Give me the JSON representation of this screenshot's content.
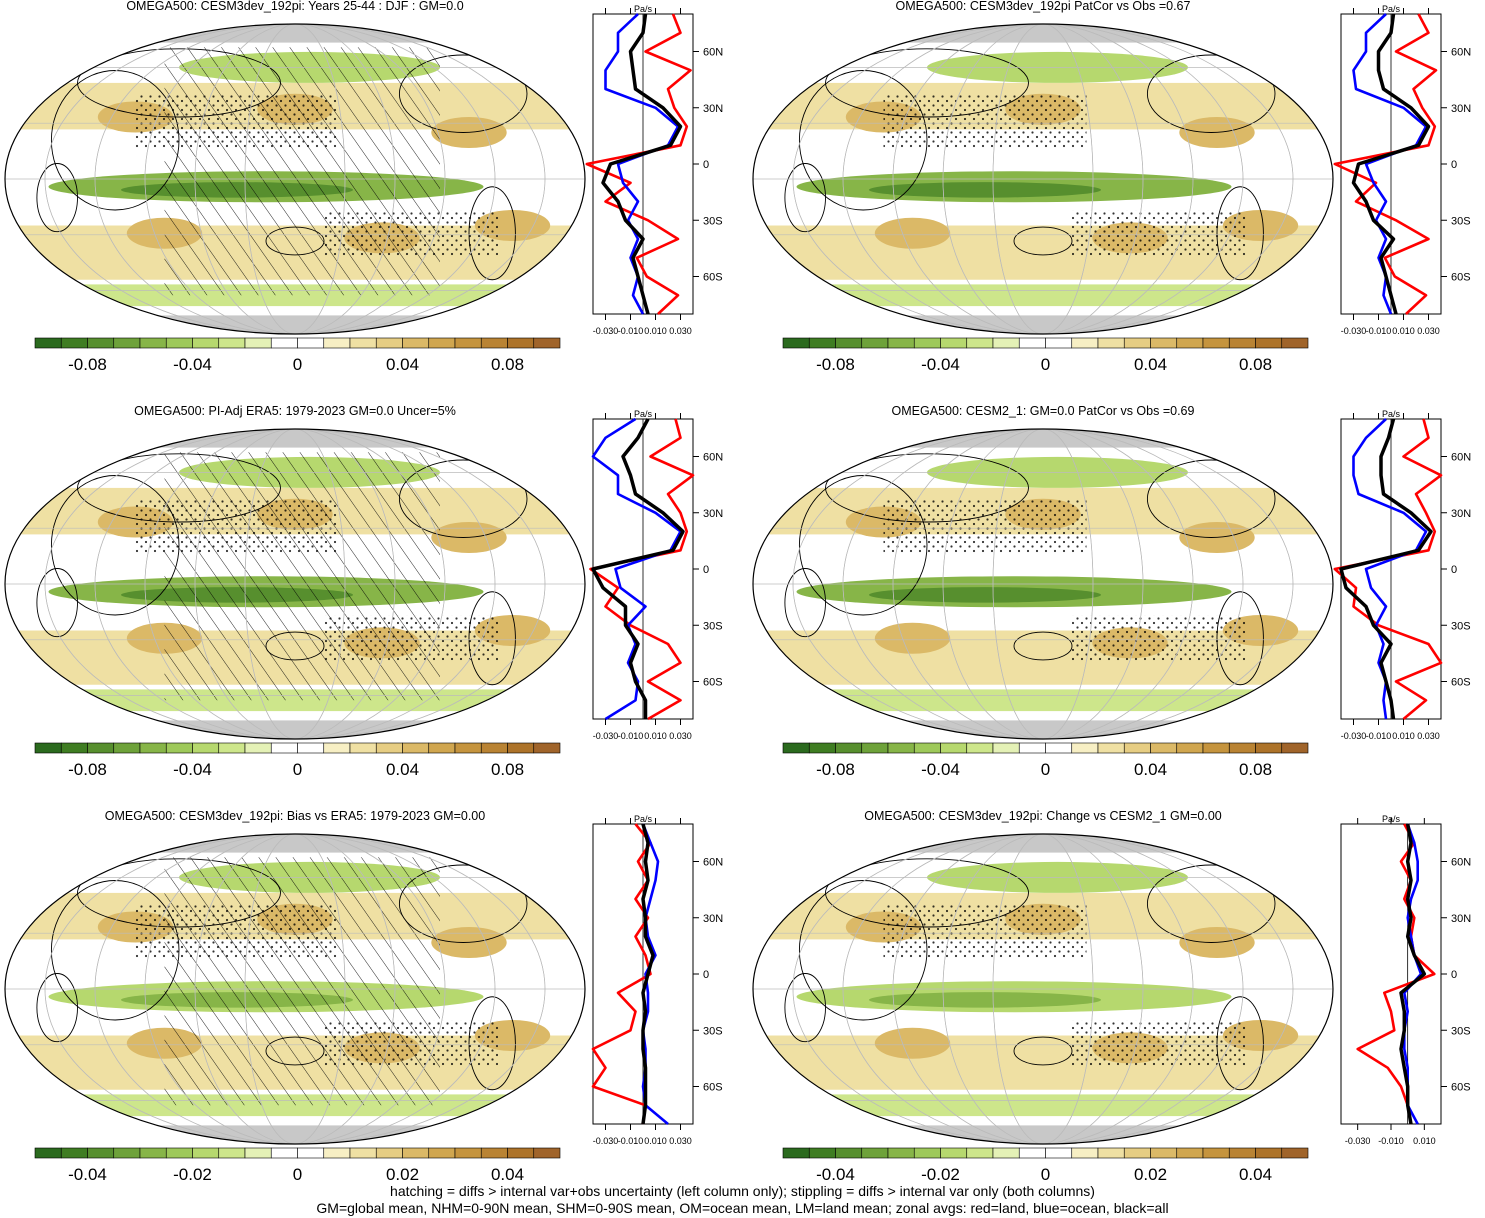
{
  "panels": [
    {
      "title": "OMEGA500: CESM3dev_192pi: Years 25-44 : DJF : GM=0.0",
      "hatching": true,
      "colorbar": {
        "labels": [
          "-0.08",
          "-0.04",
          "0",
          "0.04",
          "0.08"
        ]
      },
      "profile": {
        "unit": "Pa/s",
        "xticks": [
          "-0.030",
          "-0.010",
          "0.010",
          "0.030"
        ],
        "yticks": [
          "60N",
          "30N",
          "0",
          "30S",
          "60S"
        ]
      }
    },
    {
      "title": "OMEGA500: CESM3dev_192pi PatCor vs Obs =0.67",
      "hatching": false,
      "colorbar": {
        "labels": [
          "-0.08",
          "-0.04",
          "0",
          "0.04",
          "0.08"
        ]
      },
      "profile": {
        "unit": "Pa/s",
        "xticks": [
          "-0.030",
          "-0.010",
          "0.010",
          "0.030"
        ],
        "yticks": [
          "60N",
          "30N",
          "0",
          "30S",
          "60S"
        ]
      }
    },
    {
      "title": "OMEGA500: PI-Adj ERA5: 1979-2023 GM=0.0 Uncer=5%",
      "hatching": true,
      "colorbar": {
        "labels": [
          "-0.08",
          "-0.04",
          "0",
          "0.04",
          "0.08"
        ]
      },
      "profile": {
        "unit": "Pa/s",
        "xticks": [
          "-0.030",
          "-0.010",
          "0.010",
          "0.030"
        ],
        "yticks": [
          "60N",
          "30N",
          "0",
          "30S",
          "60S"
        ]
      }
    },
    {
      "title": "OMEGA500: CESM2_1: GM=0.0 PatCor vs Obs =0.69",
      "hatching": false,
      "colorbar": {
        "labels": [
          "-0.08",
          "-0.04",
          "0",
          "0.04",
          "0.08"
        ]
      },
      "profile": {
        "unit": "Pa/s",
        "xticks": [
          "-0.030",
          "-0.010",
          "0.010",
          "0.030"
        ],
        "yticks": [
          "60N",
          "30N",
          "0",
          "30S",
          "60S"
        ]
      }
    },
    {
      "title": "OMEGA500: CESM3dev_192pi: Bias vs ERA5: 1979-2023 GM=0.00",
      "hatching": true,
      "colorbar": {
        "labels": [
          "-0.04",
          "-0.02",
          "0",
          "0.02",
          "0.04"
        ]
      },
      "profile": {
        "unit": "Pa/s",
        "xticks": [
          "-0.030",
          "-0.010",
          "0.010",
          "0.030"
        ],
        "yticks": [
          "60N",
          "30N",
          "0",
          "30S",
          "60S"
        ]
      }
    },
    {
      "title": "OMEGA500: CESM3dev_192pi: Change vs CESM2_1 GM=0.00",
      "hatching": false,
      "colorbar": {
        "labels": [
          "-0.04",
          "-0.02",
          "0",
          "0.02",
          "0.04"
        ]
      },
      "profile": {
        "unit": "Pa/s",
        "xticks": [
          "-0.030",
          "-0.010",
          "0.010"
        ],
        "yticks": [
          "60N",
          "30N",
          "0",
          "30S",
          "60S"
        ]
      }
    }
  ],
  "footer": {
    "line1": "hatching = diffs > internal var+obs uncertainty (left column only); stippling = diffs > internal var only (both columns)",
    "line2": "GM=global mean, NHM=0-90N mean, SHM=0-90S mean, OM=ocean mean, LM=land mean; zonal avgs: red=land, blue=ocean, black=all"
  },
  "colors": {
    "colorbar": [
      "#2b6a1e",
      "#3f7d22",
      "#578f2e",
      "#6ea23a",
      "#87b548",
      "#9ec95a",
      "#b6d86e",
      "#cde68b",
      "#e4f1b6",
      "#ffffff",
      "#ffffff",
      "#f7efc4",
      "#efe0a3",
      "#e6cd83",
      "#dbb967",
      "#d0a64f",
      "#c5943e",
      "#b98333",
      "#ad7329",
      "#a0642a"
    ],
    "land_curve": "#ff0000",
    "ocean_curve": "#0000ff",
    "all_curve": "#000000",
    "land_mask": "#c8c8c8"
  },
  "chart_data": [
    {
      "type": "line",
      "xlim": [
        -0.04,
        0.04
      ],
      "ylim": [
        -80,
        80
      ],
      "xlabel": "Pa/s",
      "series": [
        {
          "color": "red",
          "x": [
            -80,
            -70,
            -60,
            -50,
            -40,
            -30,
            -20,
            -10,
            0,
            10,
            20,
            30,
            40,
            50,
            60,
            70,
            80
          ],
          "y": [
            0.012,
            0.028,
            0.003,
            -0.005,
            0.028,
            0.004,
            -0.03,
            -0.01,
            -0.045,
            0.03,
            0.035,
            0.025,
            0.02,
            0.038,
            0.002,
            0.03,
            0.024
          ]
        },
        {
          "color": "blue",
          "x": [
            -80,
            -70,
            -60,
            -50,
            -40,
            -30,
            -20,
            -10,
            0,
            10,
            20,
            30,
            40,
            50,
            60,
            70,
            80
          ],
          "y": [
            0.0,
            -0.008,
            -0.004,
            -0.01,
            -0.004,
            -0.012,
            -0.004,
            -0.016,
            -0.02,
            0.02,
            0.028,
            0.01,
            -0.03,
            -0.03,
            -0.02,
            -0.02,
            -0.004
          ]
        },
        {
          "color": "black",
          "x": [
            -80,
            -70,
            -60,
            -50,
            -40,
            -30,
            -20,
            -10,
            0,
            10,
            20,
            30,
            40,
            50,
            60,
            70,
            80
          ],
          "y": [
            0.004,
            0.0,
            -0.004,
            -0.008,
            0.0,
            -0.014,
            -0.02,
            -0.032,
            -0.026,
            0.022,
            0.03,
            0.016,
            -0.006,
            -0.008,
            -0.01,
            0.0,
            0.002
          ]
        }
      ]
    },
    {
      "type": "line",
      "xlim": [
        -0.04,
        0.04
      ],
      "ylim": [
        -80,
        80
      ],
      "xlabel": "Pa/s",
      "series": [
        {
          "color": "red",
          "x": [
            -80,
            -70,
            -60,
            -50,
            -40,
            -30,
            -20,
            -10,
            0,
            10,
            20,
            30,
            40,
            50,
            60,
            70,
            80
          ],
          "y": [
            0.012,
            0.028,
            0.003,
            -0.005,
            0.03,
            0.004,
            -0.028,
            -0.012,
            -0.045,
            0.03,
            0.035,
            0.025,
            0.018,
            0.036,
            0.004,
            0.03,
            0.022
          ]
        },
        {
          "color": "blue",
          "x": [
            -80,
            -70,
            -60,
            -50,
            -40,
            -30,
            -20,
            -10,
            0,
            10,
            20,
            30,
            40,
            50,
            60,
            70,
            80
          ],
          "y": [
            0.0,
            -0.006,
            -0.004,
            -0.01,
            -0.004,
            -0.012,
            -0.004,
            -0.014,
            -0.02,
            0.02,
            0.028,
            0.01,
            -0.028,
            -0.03,
            -0.02,
            -0.02,
            -0.004
          ]
        },
        {
          "color": "black",
          "x": [
            -80,
            -70,
            -60,
            -50,
            -40,
            -30,
            -20,
            -10,
            0,
            10,
            20,
            30,
            40,
            50,
            60,
            70,
            80
          ],
          "y": [
            0.004,
            0.0,
            -0.004,
            -0.008,
            0.002,
            -0.014,
            -0.02,
            -0.03,
            -0.026,
            0.022,
            0.03,
            0.016,
            -0.006,
            -0.01,
            -0.01,
            0.0,
            0.002
          ]
        }
      ]
    },
    {
      "type": "line",
      "xlim": [
        -0.04,
        0.04
      ],
      "ylim": [
        -80,
        80
      ],
      "xlabel": "Pa/s",
      "series": [
        {
          "color": "red",
          "x": [
            -80,
            -70,
            -60,
            -50,
            -40,
            -30,
            -20,
            -10,
            0,
            10,
            20,
            30,
            40,
            50,
            60,
            70,
            80
          ],
          "y": [
            0.004,
            0.03,
            0.004,
            0.03,
            0.02,
            -0.01,
            -0.03,
            -0.02,
            -0.042,
            0.03,
            0.035,
            0.03,
            0.02,
            0.04,
            0.006,
            0.03,
            0.026
          ]
        },
        {
          "color": "blue",
          "x": [
            -80,
            -70,
            -60,
            -50,
            -40,
            -30,
            -20,
            -10,
            0,
            10,
            20,
            30,
            40,
            50,
            60,
            70,
            80
          ],
          "y": [
            -0.03,
            -0.006,
            -0.004,
            -0.012,
            -0.006,
            -0.012,
            0.002,
            -0.018,
            -0.022,
            0.022,
            0.03,
            0.01,
            -0.02,
            -0.02,
            -0.04,
            -0.03,
            -0.006
          ]
        },
        {
          "color": "black",
          "x": [
            -80,
            -70,
            -60,
            -50,
            -40,
            -30,
            -20,
            -10,
            0,
            10,
            20,
            30,
            40,
            50,
            60,
            70,
            80
          ],
          "y": [
            0.002,
            0.002,
            -0.006,
            -0.01,
            -0.004,
            -0.014,
            -0.014,
            -0.032,
            -0.04,
            0.024,
            0.032,
            0.016,
            -0.006,
            -0.01,
            -0.016,
            -0.004,
            0.004
          ]
        }
      ]
    },
    {
      "type": "line",
      "xlim": [
        -0.04,
        0.04
      ],
      "ylim": [
        -80,
        80
      ],
      "xlabel": "Pa/s",
      "series": [
        {
          "color": "red",
          "x": [
            -80,
            -70,
            -60,
            -50,
            -40,
            -30,
            -20,
            -10,
            0,
            10,
            20,
            30,
            40,
            50,
            60,
            70,
            80
          ],
          "y": [
            0.01,
            0.028,
            0.004,
            0.04,
            0.03,
            -0.01,
            -0.03,
            -0.028,
            -0.045,
            0.03,
            0.035,
            0.028,
            0.02,
            0.04,
            0.01,
            0.03,
            0.026
          ]
        },
        {
          "color": "blue",
          "x": [
            -80,
            -70,
            -60,
            -50,
            -40,
            -30,
            -20,
            -10,
            0,
            10,
            20,
            30,
            40,
            50,
            60,
            70,
            80
          ],
          "y": [
            -0.004,
            -0.006,
            -0.004,
            -0.01,
            -0.006,
            -0.012,
            -0.004,
            -0.016,
            -0.02,
            0.02,
            0.028,
            0.01,
            -0.026,
            -0.03,
            -0.03,
            -0.02,
            -0.004
          ]
        },
        {
          "color": "black",
          "x": [
            -80,
            -70,
            -60,
            -50,
            -40,
            -30,
            -20,
            -10,
            0,
            10,
            20,
            30,
            40,
            50,
            60,
            70,
            80
          ],
          "y": [
            0.002,
            0.0,
            -0.004,
            -0.008,
            0.0,
            -0.014,
            -0.02,
            -0.036,
            -0.04,
            0.022,
            0.032,
            0.016,
            -0.006,
            -0.008,
            -0.008,
            -0.002,
            0.002
          ]
        }
      ]
    },
    {
      "type": "line",
      "xlim": [
        -0.04,
        0.04
      ],
      "ylim": [
        -80,
        80
      ],
      "xlabel": "Pa/s",
      "series": [
        {
          "color": "red",
          "x": [
            -80,
            -70,
            -60,
            -50,
            -40,
            -30,
            -20,
            -10,
            0,
            10,
            20,
            30,
            40,
            50,
            60,
            70,
            80
          ],
          "y": [
            0.0,
            0.002,
            -0.04,
            -0.03,
            -0.04,
            -0.01,
            -0.006,
            -0.02,
            0.006,
            0.002,
            -0.006,
            0.004,
            -0.006,
            0.004,
            -0.004,
            0.006,
            -0.006
          ]
        },
        {
          "color": "blue",
          "x": [
            -80,
            -70,
            -60,
            -50,
            -40,
            -30,
            -20,
            -10,
            0,
            10,
            20,
            30,
            40,
            50,
            60,
            70,
            80
          ],
          "y": [
            0.02,
            0.002,
            0.0,
            0.002,
            0.002,
            0.0,
            0.004,
            0.004,
            0.002,
            0.01,
            0.004,
            0.002,
            0.006,
            0.01,
            0.012,
            0.006,
            0.0
          ]
        },
        {
          "color": "black",
          "x": [
            -80,
            -70,
            -60,
            -50,
            -40,
            -30,
            -20,
            -10,
            0,
            10,
            20,
            30,
            40,
            50,
            60,
            70,
            80
          ],
          "y": [
            0.0,
            0.002,
            0.002,
            0.002,
            0.0,
            0.0,
            0.002,
            0.0,
            0.004,
            0.008,
            0.002,
            0.002,
            0.0,
            0.004,
            0.002,
            0.004,
            0.0
          ]
        }
      ]
    },
    {
      "type": "line",
      "xlim": [
        -0.04,
        0.02
      ],
      "ylim": [
        -80,
        80
      ],
      "xlabel": "Pa/s",
      "series": [
        {
          "color": "red",
          "x": [
            -80,
            -70,
            -60,
            -50,
            -40,
            -30,
            -20,
            -10,
            0,
            10,
            20,
            30,
            40,
            50,
            60,
            70,
            80
          ],
          "y": [
            0.002,
            0.0,
            -0.004,
            -0.012,
            -0.03,
            -0.008,
            -0.01,
            -0.014,
            0.016,
            0.004,
            0.002,
            0.004,
            -0.002,
            0.002,
            -0.004,
            0.004,
            -0.002
          ]
        },
        {
          "color": "blue",
          "x": [
            -80,
            -70,
            -60,
            -50,
            -40,
            -30,
            -20,
            -10,
            0,
            10,
            20,
            30,
            40,
            50,
            60,
            70,
            80
          ],
          "y": [
            0.006,
            0.0,
            0.0,
            0.0,
            -0.002,
            -0.002,
            0.0,
            -0.002,
            0.008,
            0.004,
            0.002,
            0.0,
            0.002,
            0.006,
            0.006,
            0.004,
            0.0
          ]
        },
        {
          "color": "black",
          "x": [
            -80,
            -70,
            -60,
            -50,
            -40,
            -30,
            -20,
            -10,
            0,
            10,
            20,
            30,
            40,
            50,
            60,
            70,
            80
          ],
          "y": [
            0.002,
            0.0,
            0.0,
            -0.002,
            -0.004,
            -0.002,
            -0.002,
            -0.004,
            0.01,
            0.004,
            0.0,
            0.002,
            0.0,
            0.002,
            0.0,
            0.002,
            0.0
          ]
        }
      ]
    }
  ]
}
